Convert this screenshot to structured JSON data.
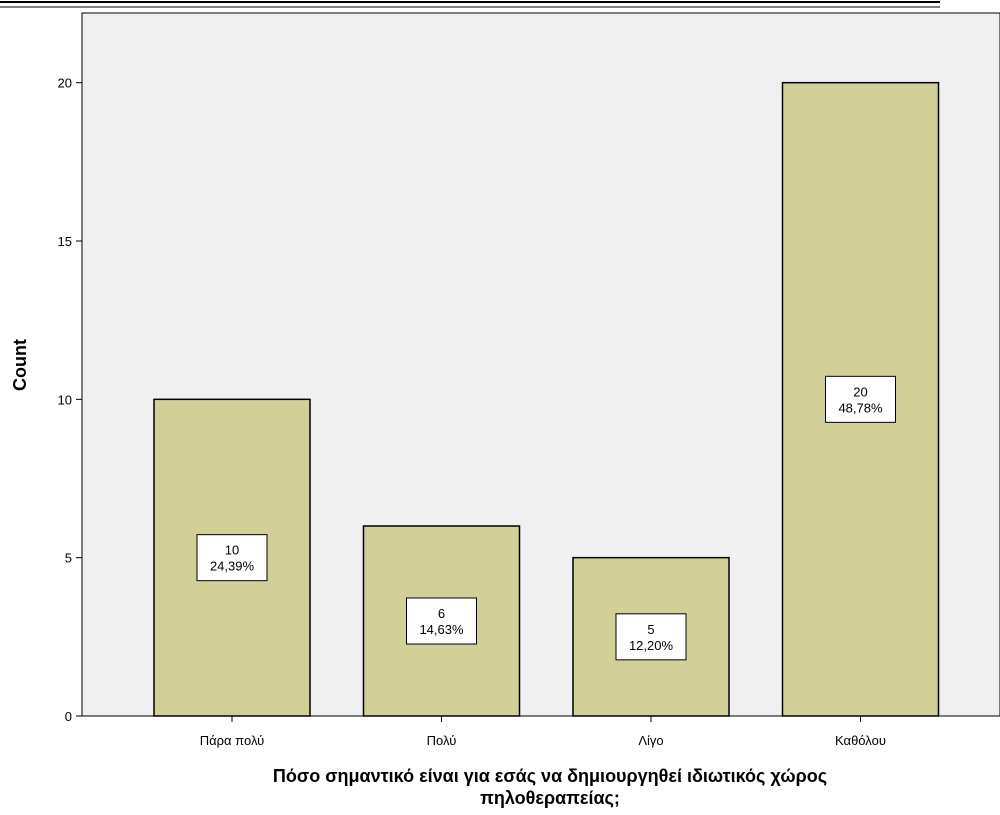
{
  "chart_data": {
    "type": "bar",
    "categories": [
      "Πάρα πολύ",
      "Πολύ",
      "Λίγο",
      "Καθόλου"
    ],
    "values": [
      10,
      6,
      5,
      20
    ],
    "percent_labels": [
      "24,39%",
      "14,63%",
      "12,20%",
      "48,78%"
    ],
    "count_labels": [
      "10",
      "6",
      "5",
      "20"
    ],
    "xlabel_lines": [
      "Πόσο σημαντικό είναι για εσάς να δημιουργηθεί ιδιωτικός χώρος",
      "πηλοθεραπείας;"
    ],
    "ylabel": "Count",
    "ylim": [
      0,
      22.2
    ],
    "yticks": [
      0,
      5,
      10,
      15,
      20
    ],
    "grid": false,
    "colors": {
      "bar_fill": "#d3cf99",
      "bar_stroke": "#000000",
      "plot_bg": "#f0f0f0",
      "label_box": "#ffffff"
    }
  }
}
